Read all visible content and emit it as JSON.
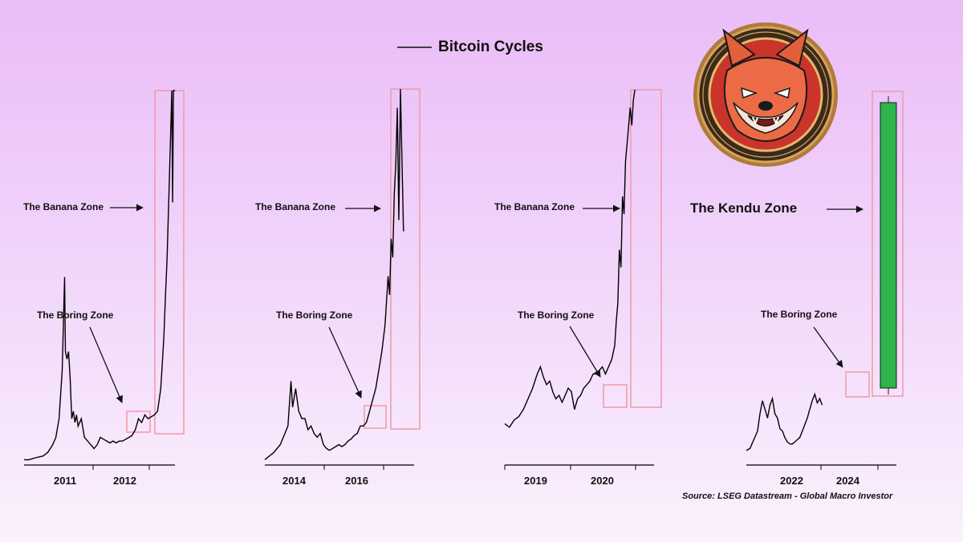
{
  "chart_data": {
    "type": "line",
    "title": "Bitcoin Cycles",
    "legend": {
      "position": "top-center",
      "entry": "Bitcoin Cycles"
    },
    "source": "Source: LSEG Datastream - Global Macro Investor",
    "panels": [
      {
        "id": "cycle-2011",
        "x_ticks": [
          "2011",
          "2012"
        ],
        "zones": {
          "boring": "The Boring Zone",
          "banana": "The Banana Zone"
        },
        "series": [
          [
            0.0,
            0.01
          ],
          [
            0.03,
            0.01
          ],
          [
            0.07,
            0.015
          ],
          [
            0.12,
            0.02
          ],
          [
            0.15,
            0.03
          ],
          [
            0.18,
            0.05
          ],
          [
            0.2,
            0.07
          ],
          [
            0.22,
            0.12
          ],
          [
            0.24,
            0.25
          ],
          [
            0.255,
            0.5
          ],
          [
            0.26,
            0.3
          ],
          [
            0.27,
            0.28
          ],
          [
            0.28,
            0.3
          ],
          [
            0.29,
            0.23
          ],
          [
            0.3,
            0.12
          ],
          [
            0.31,
            0.14
          ],
          [
            0.32,
            0.11
          ],
          [
            0.33,
            0.13
          ],
          [
            0.34,
            0.1
          ],
          [
            0.36,
            0.12
          ],
          [
            0.38,
            0.07
          ],
          [
            0.4,
            0.06
          ],
          [
            0.42,
            0.05
          ],
          [
            0.44,
            0.04
          ],
          [
            0.46,
            0.05
          ],
          [
            0.48,
            0.07
          ],
          [
            0.5,
            0.065
          ],
          [
            0.52,
            0.06
          ],
          [
            0.54,
            0.055
          ],
          [
            0.56,
            0.06
          ],
          [
            0.58,
            0.055
          ],
          [
            0.6,
            0.06
          ],
          [
            0.62,
            0.06
          ],
          [
            0.64,
            0.065
          ],
          [
            0.66,
            0.07
          ],
          [
            0.68,
            0.075
          ],
          [
            0.7,
            0.09
          ],
          [
            0.72,
            0.12
          ],
          [
            0.74,
            0.11
          ],
          [
            0.76,
            0.13
          ],
          [
            0.78,
            0.12
          ],
          [
            0.8,
            0.125
          ],
          [
            0.82,
            0.13
          ],
          [
            0.84,
            0.14
          ],
          [
            0.86,
            0.2
          ],
          [
            0.87,
            0.27
          ],
          [
            0.88,
            0.34
          ],
          [
            0.89,
            0.45
          ],
          [
            0.9,
            0.55
          ],
          [
            0.91,
            0.7
          ],
          [
            0.92,
            0.85
          ],
          [
            0.93,
            1.0
          ],
          [
            0.935,
            0.7
          ],
          [
            0.94,
            1.0
          ],
          [
            0.95,
            1.0
          ]
        ]
      },
      {
        "id": "cycle-2016",
        "x_ticks": [
          "2014",
          "2016"
        ],
        "zones": {
          "boring": "The Boring Zone",
          "banana": "The Banana Zone"
        },
        "series": [
          [
            0.0,
            0.01
          ],
          [
            0.03,
            0.02
          ],
          [
            0.06,
            0.03
          ],
          [
            0.1,
            0.05
          ],
          [
            0.13,
            0.08
          ],
          [
            0.15,
            0.1
          ],
          [
            0.17,
            0.22
          ],
          [
            0.18,
            0.15
          ],
          [
            0.2,
            0.2
          ],
          [
            0.22,
            0.14
          ],
          [
            0.24,
            0.12
          ],
          [
            0.26,
            0.12
          ],
          [
            0.28,
            0.09
          ],
          [
            0.3,
            0.1
          ],
          [
            0.32,
            0.08
          ],
          [
            0.34,
            0.07
          ],
          [
            0.36,
            0.08
          ],
          [
            0.38,
            0.05
          ],
          [
            0.4,
            0.04
          ],
          [
            0.42,
            0.035
          ],
          [
            0.44,
            0.04
          ],
          [
            0.46,
            0.045
          ],
          [
            0.48,
            0.05
          ],
          [
            0.5,
            0.045
          ],
          [
            0.52,
            0.05
          ],
          [
            0.54,
            0.06
          ],
          [
            0.56,
            0.065
          ],
          [
            0.58,
            0.075
          ],
          [
            0.6,
            0.08
          ],
          [
            0.62,
            0.1
          ],
          [
            0.64,
            0.1
          ],
          [
            0.66,
            0.11
          ],
          [
            0.68,
            0.14
          ],
          [
            0.7,
            0.17
          ],
          [
            0.72,
            0.2
          ],
          [
            0.74,
            0.25
          ],
          [
            0.76,
            0.3
          ],
          [
            0.78,
            0.37
          ],
          [
            0.8,
            0.5
          ],
          [
            0.81,
            0.45
          ],
          [
            0.82,
            0.6
          ],
          [
            0.83,
            0.55
          ],
          [
            0.84,
            0.72
          ],
          [
            0.85,
            0.8
          ],
          [
            0.86,
            0.95
          ],
          [
            0.87,
            0.65
          ],
          [
            0.88,
            1.0
          ],
          [
            0.9,
            0.62
          ]
        ]
      },
      {
        "id": "cycle-2020",
        "x_ticks": [
          "2019",
          "2020"
        ],
        "zones": {
          "boring": "The Boring Zone",
          "banana": "The Banana Zone"
        },
        "series": [
          [
            0.0,
            0.06
          ],
          [
            0.03,
            0.05
          ],
          [
            0.06,
            0.07
          ],
          [
            0.09,
            0.08
          ],
          [
            0.12,
            0.1
          ],
          [
            0.15,
            0.13
          ],
          [
            0.18,
            0.16
          ],
          [
            0.21,
            0.2
          ],
          [
            0.23,
            0.22
          ],
          [
            0.25,
            0.19
          ],
          [
            0.27,
            0.17
          ],
          [
            0.29,
            0.18
          ],
          [
            0.31,
            0.15
          ],
          [
            0.33,
            0.13
          ],
          [
            0.35,
            0.14
          ],
          [
            0.37,
            0.12
          ],
          [
            0.39,
            0.14
          ],
          [
            0.41,
            0.16
          ],
          [
            0.43,
            0.15
          ],
          [
            0.45,
            0.1
          ],
          [
            0.47,
            0.13
          ],
          [
            0.49,
            0.14
          ],
          [
            0.51,
            0.16
          ],
          [
            0.53,
            0.17
          ],
          [
            0.55,
            0.18
          ],
          [
            0.57,
            0.2
          ],
          [
            0.59,
            0.2
          ],
          [
            0.61,
            0.21
          ],
          [
            0.63,
            0.22
          ],
          [
            0.65,
            0.2
          ],
          [
            0.67,
            0.22
          ],
          [
            0.69,
            0.24
          ],
          [
            0.71,
            0.28
          ],
          [
            0.72,
            0.35
          ],
          [
            0.73,
            0.4
          ],
          [
            0.74,
            0.55
          ],
          [
            0.75,
            0.5
          ],
          [
            0.76,
            0.7
          ],
          [
            0.77,
            0.65
          ],
          [
            0.78,
            0.8
          ],
          [
            0.79,
            0.85
          ],
          [
            0.8,
            0.9
          ],
          [
            0.81,
            0.95
          ],
          [
            0.82,
            0.9
          ],
          [
            0.83,
            0.97
          ],
          [
            0.84,
            1.0
          ]
        ]
      },
      {
        "id": "cycle-2024",
        "x_ticks": [
          "2022",
          "2024"
        ],
        "zones": {
          "boring": "The Boring Zone",
          "kendu": "The Kendu Zone"
        },
        "series": [
          [
            0.0,
            0.03
          ],
          [
            0.03,
            0.04
          ],
          [
            0.06,
            0.08
          ],
          [
            0.09,
            0.12
          ],
          [
            0.11,
            0.2
          ],
          [
            0.13,
            0.26
          ],
          [
            0.15,
            0.22
          ],
          [
            0.17,
            0.18
          ],
          [
            0.19,
            0.24
          ],
          [
            0.21,
            0.27
          ],
          [
            0.23,
            0.2
          ],
          [
            0.25,
            0.18
          ],
          [
            0.27,
            0.13
          ],
          [
            0.29,
            0.12
          ],
          [
            0.31,
            0.09
          ],
          [
            0.33,
            0.07
          ],
          [
            0.35,
            0.06
          ],
          [
            0.37,
            0.06
          ],
          [
            0.39,
            0.07
          ],
          [
            0.41,
            0.08
          ],
          [
            0.43,
            0.09
          ],
          [
            0.45,
            0.12
          ],
          [
            0.47,
            0.15
          ],
          [
            0.49,
            0.18
          ],
          [
            0.51,
            0.22
          ],
          [
            0.53,
            0.26
          ],
          [
            0.55,
            0.29
          ],
          [
            0.57,
            0.25
          ],
          [
            0.59,
            0.27
          ],
          [
            0.61,
            0.24
          ]
        ],
        "projection": {
          "type": "bar",
          "color": "#2db44a"
        }
      }
    ],
    "colors": {
      "line": "#000000",
      "zone_border": "#ef9aa8",
      "kendu_bar": "#2db44a"
    }
  },
  "logo": {
    "name": "kendu-dog-icon"
  }
}
